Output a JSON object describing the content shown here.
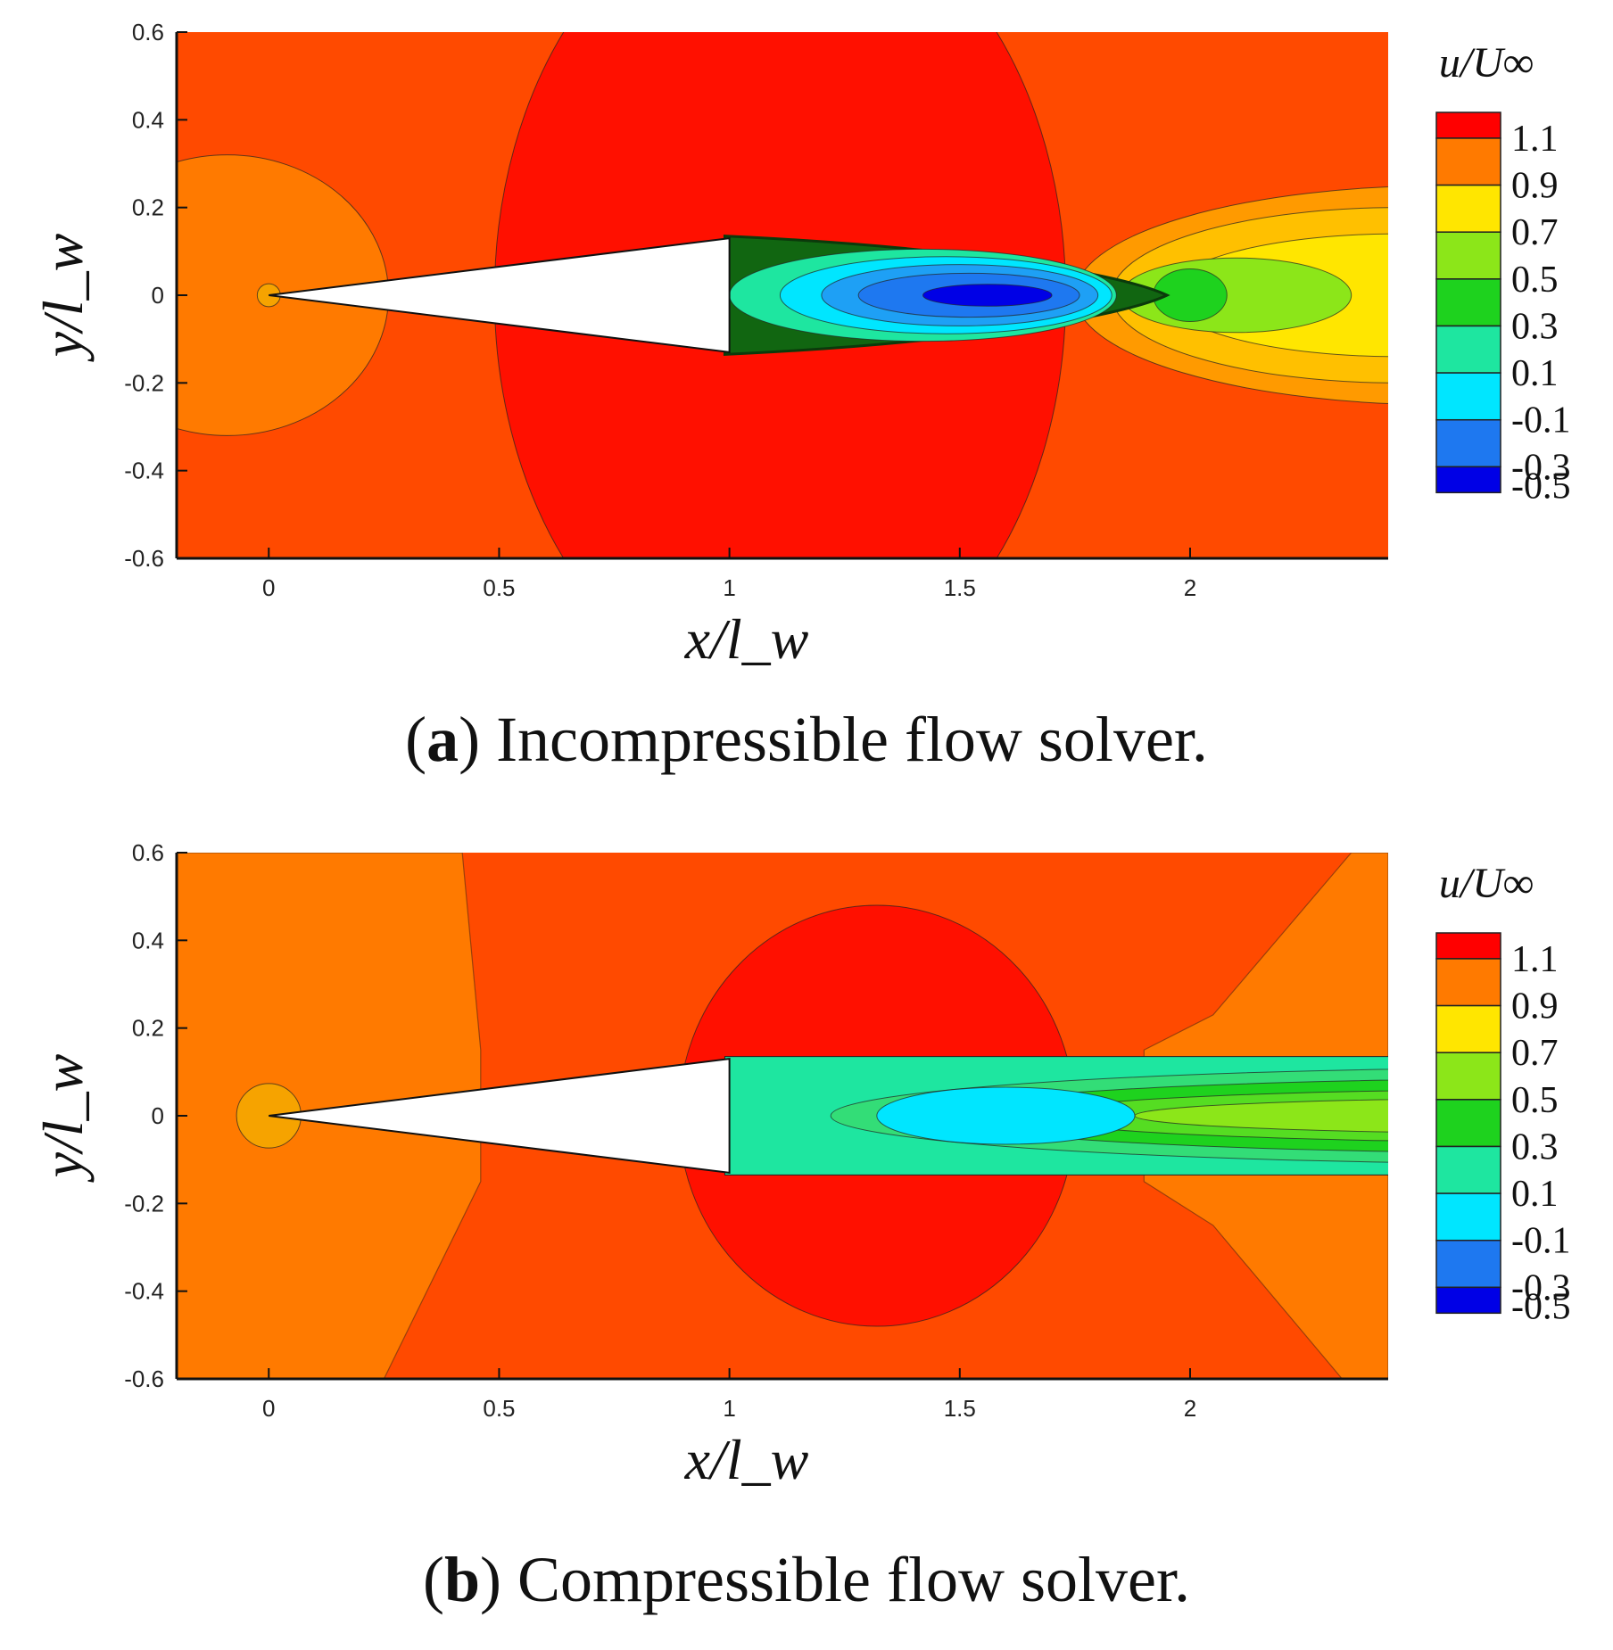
{
  "chart_data": [
    {
      "type": "contour",
      "panel_letter": "a",
      "caption": "Incompressible flow solver.",
      "xlabel": "x/l_w",
      "ylabel": "y/l_w",
      "xlim": [
        -0.2,
        2.43
      ],
      "ylim": [
        -0.6,
        0.6
      ],
      "x_ticks": [
        0,
        0.5,
        1,
        1.5,
        2
      ],
      "y_ticks": [
        0.6,
        0.4,
        0.2,
        0,
        -0.2,
        -0.4,
        -0.6
      ],
      "x_tick_labels": [
        "0",
        "0.5",
        "1",
        "1.5",
        "2"
      ],
      "y_tick_labels": [
        "0.6",
        "0.4",
        "0.2",
        "0",
        "-0.2",
        "-0.4",
        "-0.6"
      ],
      "colorbar": {
        "title": "u/U∞",
        "levels": [
          1.1,
          0.9,
          0.7,
          0.5,
          0.3,
          0.1,
          -0.1,
          -0.3,
          -0.5
        ],
        "level_labels": [
          "1.1",
          "0.9",
          "0.7",
          "0.5",
          "0.3",
          "0.1",
          "-0.1",
          "-0.3",
          "-0.5"
        ],
        "colors": [
          "#ff0000",
          "#ff7a00",
          "#ffe600",
          "#8ce619",
          "#1ed21e",
          "#1ee6a0",
          "#00e6ff",
          "#1e78f0",
          "#0000e6"
        ]
      },
      "body": {
        "tip": [
          0,
          0
        ],
        "base_x": 1,
        "half_height": 0.13
      },
      "wake_min_x": 1.55,
      "wake_min_value": -0.5
    },
    {
      "type": "contour",
      "panel_letter": "b",
      "caption": "Compressible flow solver.",
      "xlabel": "x/l_w",
      "ylabel": "y/l_w",
      "xlim": [
        -0.2,
        2.43
      ],
      "ylim": [
        -0.6,
        0.6
      ],
      "x_ticks": [
        0,
        0.5,
        1,
        1.5,
        2
      ],
      "y_ticks": [
        0.6,
        0.4,
        0.2,
        0,
        -0.2,
        -0.4,
        -0.6
      ],
      "x_tick_labels": [
        "0",
        "0.5",
        "1",
        "1.5",
        "2"
      ],
      "y_tick_labels": [
        "0.6",
        "0.4",
        "0.2",
        "0",
        "-0.2",
        "-0.4",
        "-0.6"
      ],
      "colorbar": {
        "title": "u/U∞",
        "levels": [
          1.1,
          0.9,
          0.7,
          0.5,
          0.3,
          0.1,
          -0.1,
          -0.3,
          -0.5
        ],
        "level_labels": [
          "1.1",
          "0.9",
          "0.7",
          "0.5",
          "0.3",
          "0.1",
          "-0.1",
          "-0.3",
          "-0.5"
        ],
        "colors": [
          "#ff0000",
          "#ff7a00",
          "#ffe600",
          "#8ce619",
          "#1ed21e",
          "#1ee6a0",
          "#00e6ff",
          "#1e78f0",
          "#0000e6"
        ]
      },
      "body": {
        "tip": [
          0,
          0
        ],
        "base_x": 1,
        "half_height": 0.13
      },
      "wake_min_x": 1.6,
      "wake_min_value": -0.1
    }
  ]
}
